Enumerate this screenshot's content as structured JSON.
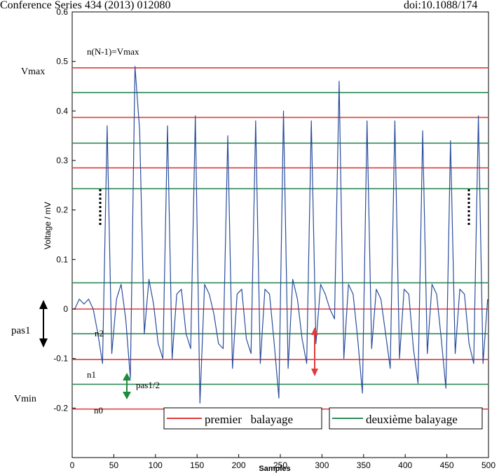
{
  "header": {
    "left": "Conference Series 434 (2013) 012080",
    "right": "doi:10.1088/174"
  },
  "chart_data": {
    "type": "line",
    "xlabel": "Samples",
    "ylabel": "Voltage / mV",
    "xlim": [
      0,
      500
    ],
    "ylim": [
      -0.3,
      0.6
    ],
    "x_ticks": [
      "0",
      "50",
      "100",
      "150",
      "200",
      "250",
      "300",
      "350",
      "400",
      "450",
      "500"
    ],
    "y_ticks": [
      "-0.2",
      "-0.1",
      "0",
      "0.1",
      "0.2",
      "0.3",
      "0.4",
      "0.5",
      "0.6"
    ],
    "grid": false,
    "signal_color": "#2a4d9c",
    "series": [
      {
        "values": [
          0.0,
          0.02,
          0.01,
          0.02,
          0.0,
          -0.05,
          -0.11,
          0.37,
          -0.09,
          0.02,
          0.05,
          -0.02,
          -0.14,
          0.49,
          0.36,
          -0.05,
          0.06,
          0.01,
          -0.07,
          -0.1,
          0.37,
          -0.1,
          0.03,
          0.04,
          -0.05,
          -0.08,
          0.39,
          -0.19,
          0.05,
          0.03,
          -0.01,
          -0.07,
          -0.08,
          0.35,
          -0.12,
          0.03,
          0.04,
          -0.06,
          -0.09,
          0.38,
          -0.11,
          0.04,
          0.03,
          -0.07,
          -0.18,
          0.4,
          -0.12,
          0.06,
          0.02,
          -0.06,
          -0.11,
          0.38,
          -0.07,
          0.05,
          0.03,
          0.0,
          -0.02,
          0.46,
          -0.1,
          0.05,
          0.03,
          -0.06,
          -0.17,
          0.38,
          -0.08,
          0.04,
          0.02,
          -0.05,
          -0.12,
          0.38,
          -0.1,
          0.04,
          0.03,
          -0.08,
          -0.15,
          0.36,
          -0.09,
          0.05,
          0.03,
          -0.06,
          -0.16,
          0.34,
          -0.09,
          0.04,
          0.03,
          -0.07,
          -0.11,
          0.39,
          -0.11,
          0.02
        ]
      }
    ],
    "lines_premier": [
      {
        "y": 0.487,
        "label": "n(N-1)=Vmax"
      },
      {
        "y": 0.387,
        "label": ""
      },
      {
        "y": 0.285,
        "label": ""
      },
      {
        "y": 0.0,
        "label": ""
      },
      {
        "y": -0.102,
        "label": ""
      },
      {
        "y": -0.202,
        "label": "n0"
      }
    ],
    "lines_deuxieme": [
      {
        "y": 0.437,
        "label": ""
      },
      {
        "y": 0.335,
        "label": ""
      },
      {
        "y": 0.243,
        "label": ""
      },
      {
        "y": 0.053,
        "label": ""
      },
      {
        "y": -0.05,
        "label": "n2"
      },
      {
        "y": -0.152,
        "label": "n1"
      }
    ],
    "annotations": {
      "vmax": "Vmax",
      "vmin": "Vmin",
      "pas1": "pas1",
      "pas1_half": "pas1/2"
    },
    "legend": {
      "position": "bottom-right",
      "items": [
        {
          "label": "premier   balayage",
          "color": "#e03b3b"
        },
        {
          "label": "deuxième balayage",
          "color": "#2e8b57"
        }
      ]
    },
    "colors": {
      "premier": "#e03b3b",
      "deuxieme": "#2e8b57",
      "black_arrow": "#000000",
      "red_arrow": "#e03b3b",
      "green_arrow": "#1f8a3a"
    }
  }
}
